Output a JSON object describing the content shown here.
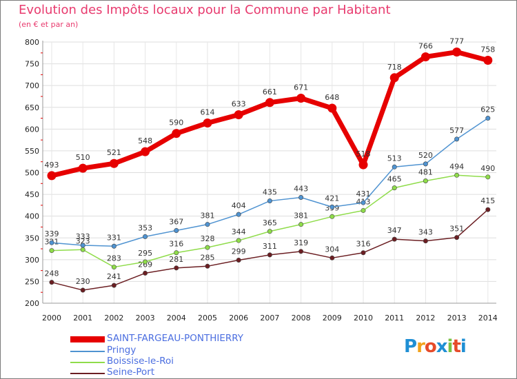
{
  "title": "Evolution des Impôts locaux pour la Commune par Habitant",
  "subtitle": "(en € et par an)",
  "logo": "Proxiti",
  "chart_data": {
    "type": "line",
    "x": [
      "2000",
      "2001",
      "2002",
      "2003",
      "2004",
      "2005",
      "2006",
      "2007",
      "2008",
      "2009",
      "2010",
      "2011",
      "2012",
      "2013",
      "2014"
    ],
    "ylim": [
      200,
      800
    ],
    "yticks": [
      200,
      250,
      300,
      350,
      400,
      450,
      500,
      550,
      600,
      650,
      700,
      750,
      800
    ],
    "grid": true,
    "legend_position": "bottom-left",
    "series": [
      {
        "name": "Seine-Port",
        "color": "#6b1e22",
        "values": [
          248,
          230,
          241,
          269,
          281,
          285,
          299,
          311,
          319,
          304,
          316,
          347,
          343,
          351,
          415
        ]
      },
      {
        "name": "Boissise-le-Roi",
        "color": "#8fdc4a",
        "values": [
          321,
          323,
          283,
          295,
          316,
          328,
          344,
          365,
          381,
          399,
          413,
          465,
          481,
          494,
          490
        ]
      },
      {
        "name": "Pringy",
        "color": "#4f93d1",
        "values": [
          339,
          333,
          331,
          353,
          367,
          381,
          404,
          435,
          443,
          421,
          431,
          513,
          520,
          577,
          625
        ]
      },
      {
        "name": "SAINT-FARGEAU-PONTHIERRY",
        "color": "#e60000",
        "values": [
          493,
          510,
          521,
          548,
          590,
          614,
          633,
          661,
          671,
          648,
          518,
          718,
          766,
          777,
          758
        ]
      }
    ]
  }
}
